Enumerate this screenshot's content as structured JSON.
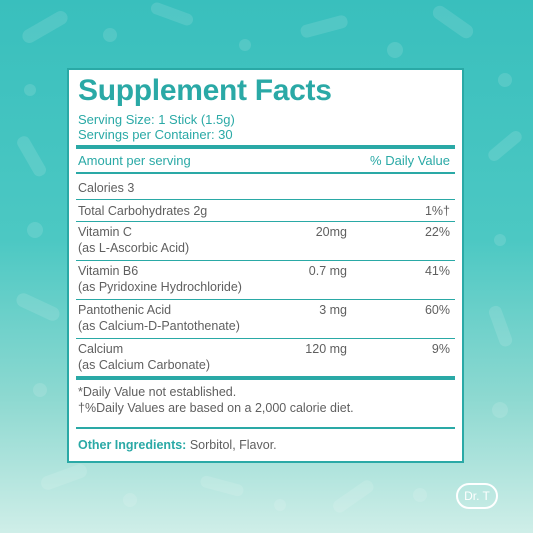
{
  "panel": {
    "title": "Supplement Facts",
    "serving_size": "Serving Size: 1 Stick (1.5g)",
    "servings_per_container": "Servings per Container: 30",
    "amount_header": "Amount per serving",
    "dv_header": "% Daily Value",
    "calories": "Calories 3",
    "total_carbs": {
      "label": "Total Carbohydrates 2g",
      "dv": "1%†"
    },
    "rows": [
      {
        "name": "Vitamin C",
        "source": "(as L-Ascorbic Acid)",
        "amount": "20mg",
        "dv": "22%"
      },
      {
        "name": "Vitamin B6",
        "source": "(as Pyridoxine Hydrochloride)",
        "amount": "0.7 mg",
        "dv": "41%"
      },
      {
        "name": "Pantothenic Acid",
        "source": "(as Calcium-D-Pantothenate)",
        "amount": "3 mg",
        "dv": "60%"
      },
      {
        "name": "Calcium",
        "source": "(as Calcium Carbonate)",
        "amount": "120 mg",
        "dv": "9%"
      }
    ],
    "footnote_1": "*Daily Value not established.",
    "footnote_2": "†%Daily Values are based on a 2,000 calorie diet.",
    "other_label": "Other Ingredients:",
    "other_value": " Sorbitol, Flavor."
  },
  "logo": {
    "text": "Dr. T"
  },
  "colors": {
    "accent": "#2aa9a6",
    "background_top": "#39bfbd",
    "background_bottom": "#cfeee8",
    "text": "#5f5f5f"
  }
}
